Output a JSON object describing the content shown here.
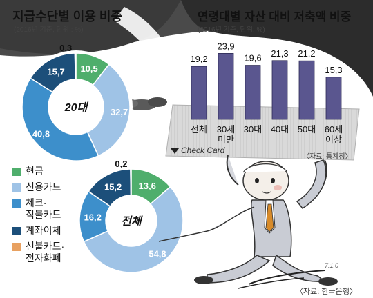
{
  "left_title": "지급수단별 이용 비중",
  "left_subtitle": "(2016년 기준, 단위 : %)",
  "right_title": "연령대별 자산 대비 저축액 비중",
  "right_subtitle": "(2016년 기준, 단위: %)",
  "right_source": "〈자료: 통계청〉",
  "bottom_source": "〈자료: 한국은행〉",
  "check_card_text": "Check Card",
  "signature": "7.1.0",
  "colors": {
    "cash": "#4fae6c",
    "credit": "#9fc3e6",
    "debit": "#3d8fcb",
    "transfer": "#1c4f7a",
    "prepaid": "#e8a161",
    "bar": "#5a568f"
  },
  "chart_data": [
    {
      "type": "pie",
      "center_label": "20대",
      "categories": [
        "현금",
        "신용카드",
        "체크·직불카드",
        "계좌이체",
        "선불카드·전자화폐"
      ],
      "values": [
        10.5,
        32.7,
        40.8,
        15.7,
        0.3
      ],
      "labels": [
        "10,5",
        "32,7",
        "40,8",
        "15,7",
        "0,3"
      ]
    },
    {
      "type": "pie",
      "center_label": "전체",
      "categories": [
        "현금",
        "신용카드",
        "체크·직불카드",
        "계좌이체",
        "선불카드·전자화폐"
      ],
      "values": [
        13.6,
        54.8,
        16.2,
        15.2,
        0.2
      ],
      "labels": [
        "13,6",
        "54,8",
        "16,2",
        "15,2",
        "0,2"
      ]
    },
    {
      "type": "bar",
      "categories": [
        "전체",
        "30세 미만",
        "30대",
        "40대",
        "50대",
        "60세 이상"
      ],
      "values": [
        19.2,
        23.9,
        19.6,
        21.3,
        21.2,
        15.3
      ],
      "labels": [
        "19,2",
        "23,9",
        "19,6",
        "21,3",
        "21,2",
        "15,3"
      ]
    }
  ],
  "legend": [
    {
      "label": "현금",
      "color": "#4fae6c"
    },
    {
      "label": "신용카드",
      "color": "#9fc3e6"
    },
    {
      "label": "체크·\n직불카드",
      "color": "#3d8fcb"
    },
    {
      "label": "계좌이체",
      "color": "#1c4f7a"
    },
    {
      "label": "선불카드·\n전자화폐",
      "color": "#e8a161"
    }
  ]
}
